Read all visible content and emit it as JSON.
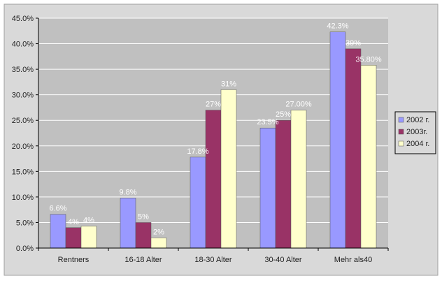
{
  "chart_data": {
    "type": "bar",
    "categories": [
      "Rentners",
      "16-18 Alter",
      "18-30 Alter",
      "30-40 Alter",
      "Mehr als40"
    ],
    "series": [
      {
        "name": "2002 г.",
        "values": [
          6.6,
          9.8,
          17.8,
          23.5,
          42.3
        ],
        "labels": [
          "6.6%",
          "9.8%",
          "17.8%",
          "23.5%",
          "42.3%"
        ]
      },
      {
        "name": "2003г.",
        "values": [
          4,
          5,
          27,
          25,
          39
        ],
        "labels": [
          "4%",
          "5%",
          "27%",
          "25%",
          "39%"
        ]
      },
      {
        "name": "2004 г.",
        "values": [
          4.3,
          2,
          31,
          27,
          35.8
        ],
        "labels": [
          "4%",
          "2%",
          "31%",
          "27.00%",
          "35.80%"
        ]
      }
    ],
    "y_ticks": [
      "0.0%",
      "5.0%",
      "10.0%",
      "15.0%",
      "20.0%",
      "25.0%",
      "30.0%",
      "35.0%",
      "40.0%",
      "45.0%"
    ],
    "ylim": [
      0,
      45
    ],
    "title": "",
    "xlabel": "",
    "ylabel": "",
    "grid": true,
    "legend_position": "right",
    "colors": {
      "series": [
        "#9999ff",
        "#993366",
        "#ffffcc"
      ],
      "plot_background": "#c0c0c0",
      "chart_background": "#d9d9d9",
      "grid": "#ffffff",
      "axis": "#000000"
    }
  }
}
